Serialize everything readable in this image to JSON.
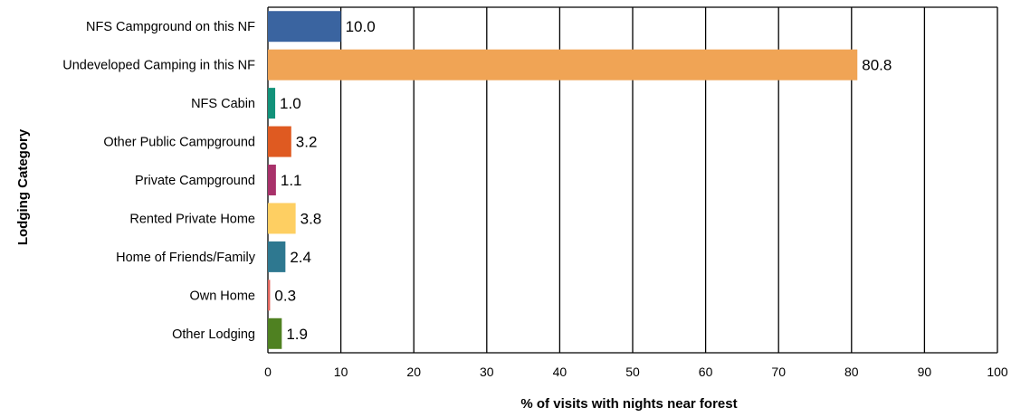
{
  "chart_data": {
    "type": "bar",
    "orientation": "horizontal",
    "title": "",
    "xlabel": "% of visits with nights near forest",
    "ylabel": "Lodging Category",
    "xlim": [
      0,
      100
    ],
    "xticks": [
      0,
      10,
      20,
      30,
      40,
      50,
      60,
      70,
      80,
      90,
      100
    ],
    "grid": true,
    "categories": [
      "NFS Campground on this NF",
      "Undeveloped Camping in this NF",
      "NFS Cabin",
      "Other Public Campground",
      "Private Campground",
      "Rented Private Home",
      "Home of Friends/Family",
      "Own Home",
      "Other Lodging"
    ],
    "values": [
      10.0,
      80.8,
      1.0,
      3.2,
      1.1,
      3.8,
      2.4,
      0.3,
      1.9
    ],
    "value_labels": [
      "10.0",
      "80.8",
      "1.0",
      "3.2",
      "1.1",
      "3.8",
      "2.4",
      "0.3",
      "1.9"
    ],
    "colors": [
      "#3a64a0",
      "#f0a455",
      "#12927a",
      "#df5a21",
      "#a8316a",
      "#fecf62",
      "#2e7890",
      "#e4665e",
      "#4f8121"
    ]
  }
}
